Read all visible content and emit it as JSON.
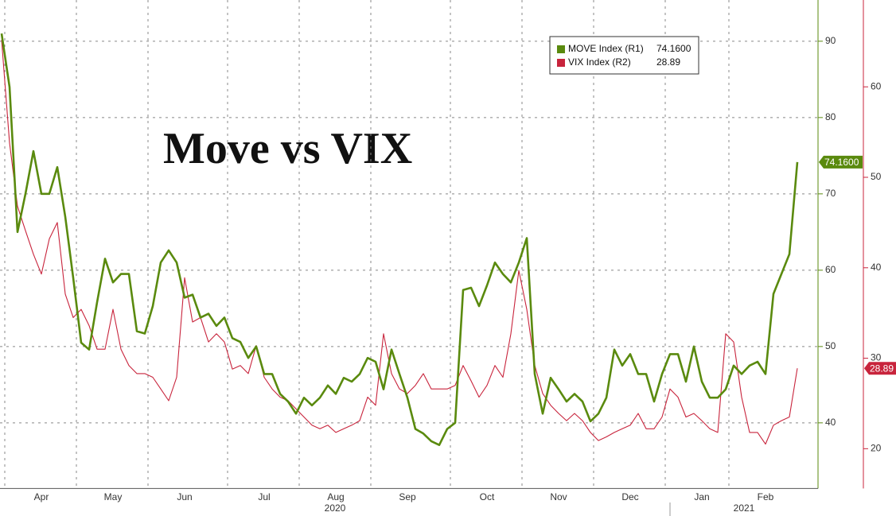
{
  "chart_data": {
    "type": "line",
    "title": "Move vs VIX",
    "categories": [
      null,
      null,
      null,
      null,
      null,
      "Apr",
      null,
      null,
      null,
      null,
      null,
      null,
      null,
      null,
      "May",
      null,
      null,
      null,
      null,
      null,
      null,
      null,
      null,
      "Jun",
      null,
      null,
      null,
      null,
      null,
      null,
      null,
      null,
      null,
      "Jul",
      null,
      null,
      null,
      null,
      null,
      null,
      null,
      null,
      "Aug",
      null,
      null,
      null,
      null,
      null,
      null,
      null,
      null,
      "Sep",
      null,
      null,
      null,
      null,
      null,
      null,
      null,
      null,
      null,
      "Oct",
      null,
      null,
      null,
      null,
      null,
      null,
      null,
      null,
      "Nov",
      null,
      null,
      null,
      null,
      null,
      null,
      null,
      null,
      "Dec",
      null,
      null,
      null,
      null,
      null,
      null,
      null,
      null,
      "Jan",
      null,
      null,
      null,
      null,
      null,
      null,
      null,
      "Feb",
      null,
      null,
      null,
      null
    ],
    "x_group_labels": [
      "2020",
      "2021"
    ],
    "series": [
      {
        "name": "MOVE Index (R1)",
        "color": "#5a8a0e",
        "axis": "y",
        "last_value_label": "74.1600",
        "values": [
          91,
          84,
          65,
          70,
          75.6,
          70,
          70,
          73.5,
          67,
          59,
          50.5,
          49.6,
          55.8,
          61.5,
          58.4,
          59.5,
          59.5,
          52,
          51.7,
          55.3,
          61,
          62.6,
          61,
          56.4,
          56.8,
          53.8,
          54.3,
          52.7,
          53.8,
          51.1,
          50.6,
          48.5,
          50,
          46.4,
          46.4,
          43.8,
          42.8,
          41.2,
          43.3,
          42.3,
          43.3,
          44.9,
          43.8,
          45.9,
          45.4,
          46.4,
          48.5,
          48,
          44.4,
          49.6,
          46.4,
          43.3,
          39.2,
          38.6,
          37.6,
          37.1,
          39.2,
          40,
          57.4,
          57.7,
          55.3,
          58,
          61,
          59.5,
          58.4,
          61,
          64.2,
          46.4,
          41.2,
          45.9,
          44.4,
          42.8,
          43.8,
          42.8,
          40.2,
          41.2,
          43.3,
          49.6,
          47.5,
          49,
          46.4,
          46.4,
          42.8,
          46.4,
          49,
          49,
          45.4,
          50,
          45.4,
          43.3,
          43.3,
          44.4,
          47.5,
          46.4,
          47.5,
          48,
          46.4,
          56.9,
          59.5,
          62.1,
          74.16
        ]
      },
      {
        "name": "VIX Index (R2)",
        "color": "#c8243c",
        "axis": "y2",
        "last_value_label": "28.89",
        "values": [
          65.2,
          53.8,
          46.8,
          44.1,
          41.5,
          39.3,
          43.2,
          45,
          37.1,
          34.5,
          35.4,
          33.6,
          31,
          31,
          35.4,
          31,
          29.2,
          28.3,
          28.3,
          27.9,
          26.6,
          25.3,
          27.9,
          38.9,
          34,
          34.5,
          31.8,
          32.7,
          31.8,
          28.8,
          29.2,
          28.3,
          31.4,
          27.9,
          26.6,
          25.7,
          25.3,
          24.4,
          23.5,
          22.6,
          22.2,
          22.6,
          21.8,
          22.2,
          22.6,
          23.1,
          25.7,
          24.8,
          32.7,
          28.3,
          26.6,
          26.1,
          27,
          28.3,
          26.6,
          26.6,
          26.6,
          27,
          29.2,
          27.5,
          25.7,
          27,
          29.2,
          27.9,
          32.7,
          39.7,
          35.4,
          29.2,
          26.1,
          24.8,
          23.9,
          23.1,
          23.9,
          23.1,
          21.8,
          20.9,
          21.3,
          21.8,
          22.2,
          22.6,
          23.9,
          22.2,
          22.2,
          23.5,
          26.6,
          25.7,
          23.5,
          23.9,
          23.1,
          22.2,
          21.8,
          32.7,
          31.8,
          25.7,
          21.8,
          21.8,
          20.5,
          22.6,
          23.1,
          23.5,
          28.89
        ]
      }
    ],
    "ylim": [
      31.4,
      95.4
    ],
    "yticks": [
      40,
      50,
      60,
      70,
      80,
      90
    ],
    "y2lim": [
      15.6,
      69.6
    ],
    "y2ticks": [
      20,
      30,
      40,
      50,
      60
    ],
    "grid": true
  }
}
